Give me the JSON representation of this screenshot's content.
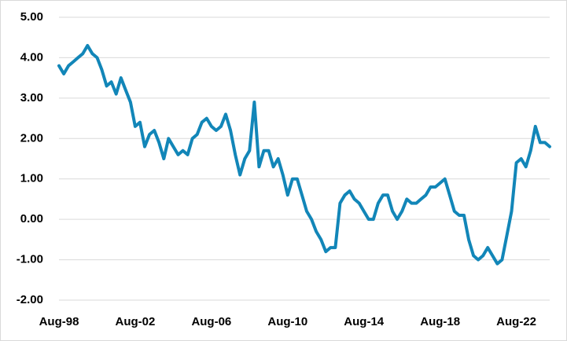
{
  "chart_data": {
    "type": "line",
    "categories": [
      "Aug-98",
      null,
      null,
      null,
      null,
      null,
      null,
      null,
      null,
      null,
      null,
      null,
      null,
      null,
      null,
      null,
      "Aug-02",
      null,
      null,
      null,
      null,
      null,
      null,
      null,
      null,
      null,
      null,
      null,
      null,
      null,
      null,
      null,
      "Aug-06",
      null,
      null,
      null,
      null,
      null,
      null,
      null,
      null,
      null,
      null,
      null,
      null,
      null,
      null,
      null,
      "Aug-10",
      null,
      null,
      null,
      null,
      null,
      null,
      null,
      null,
      null,
      null,
      null,
      null,
      null,
      null,
      null,
      "Aug-14",
      null,
      null,
      null,
      null,
      null,
      null,
      null,
      null,
      null,
      null,
      null,
      null,
      null,
      null,
      null,
      "Aug-18",
      null,
      null,
      null,
      null,
      null,
      null,
      null,
      null,
      null,
      null,
      null,
      null,
      null,
      null,
      null,
      "Aug-22",
      null,
      null,
      null,
      null,
      null,
      null,
      null
    ],
    "series": [
      {
        "color": "#1286b8",
        "values": [
          3.8,
          3.6,
          3.8,
          3.9,
          4.0,
          4.1,
          4.3,
          4.1,
          4.0,
          3.7,
          3.3,
          3.4,
          3.1,
          3.5,
          3.2,
          2.9,
          2.3,
          2.4,
          1.8,
          2.1,
          2.2,
          1.9,
          1.5,
          2.0,
          1.8,
          1.6,
          1.7,
          1.6,
          2.0,
          2.1,
          2.4,
          2.5,
          2.3,
          2.2,
          2.3,
          2.6,
          2.2,
          1.6,
          1.1,
          1.5,
          1.7,
          2.9,
          1.3,
          1.7,
          1.7,
          1.3,
          1.5,
          1.1,
          0.6,
          1.0,
          1.0,
          0.6,
          0.2,
          0.0,
          -0.3,
          -0.5,
          -0.8,
          -0.7,
          -0.7,
          0.4,
          0.6,
          0.7,
          0.5,
          0.4,
          0.2,
          0.0,
          0.0,
          0.4,
          0.6,
          0.6,
          0.2,
          0.0,
          0.2,
          0.5,
          0.4,
          0.4,
          0.5,
          0.6,
          0.8,
          0.8,
          0.9,
          1.0,
          0.6,
          0.2,
          0.1,
          0.1,
          -0.5,
          -0.9,
          -1.0,
          -0.9,
          -0.7,
          -0.9,
          -1.1,
          -1.0,
          -0.4,
          0.2,
          1.4,
          1.5,
          1.3,
          1.7,
          2.3,
          1.9,
          1.9,
          1.8
        ]
      }
    ],
    "ylim": [
      -2,
      5
    ],
    "yticks": [
      {
        "value": -2,
        "label": "-2.00"
      },
      {
        "value": -1,
        "label": "-1.00"
      },
      {
        "value": 0,
        "label": "0.00"
      },
      {
        "value": 1,
        "label": "1.00"
      },
      {
        "value": 2,
        "label": "2.00"
      },
      {
        "value": 3,
        "label": "3.00"
      },
      {
        "value": 4,
        "label": "4.00"
      },
      {
        "value": 5,
        "label": "5.00"
      }
    ],
    "grid": true
  }
}
